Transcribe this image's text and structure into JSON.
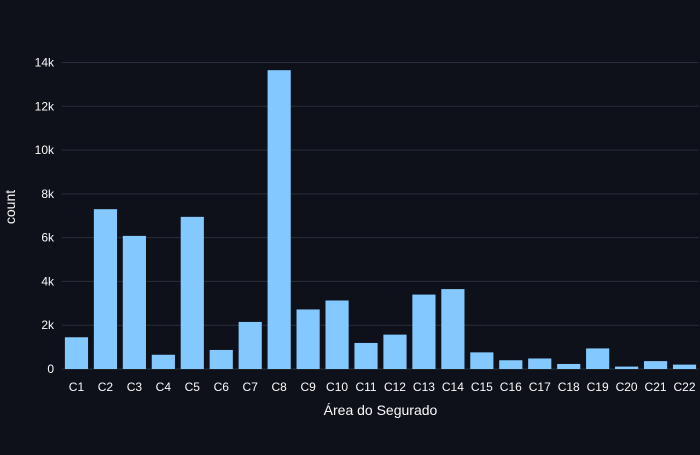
{
  "chart_data": {
    "type": "bar",
    "xlabel": "Área do Segurado",
    "ylabel": "count",
    "categories": [
      "C1",
      "C2",
      "C3",
      "C4",
      "C5",
      "C6",
      "C7",
      "C8",
      "C9",
      "C10",
      "C11",
      "C12",
      "C13",
      "C14",
      "C15",
      "C16",
      "C17",
      "C18",
      "C19",
      "C20",
      "C21",
      "C22"
    ],
    "values": [
      1450,
      7300,
      6080,
      650,
      6950,
      870,
      2150,
      13650,
      2720,
      3130,
      1190,
      1570,
      3400,
      3650,
      760,
      400,
      480,
      230,
      940,
      110,
      360,
      200
    ],
    "ylim": [
      0,
      14800
    ],
    "yticks": [
      0,
      2000,
      4000,
      6000,
      8000,
      10000,
      12000,
      14000
    ],
    "ytick_labels": [
      "0",
      "2k",
      "4k",
      "6k",
      "8k",
      "10k",
      "12k",
      "14k"
    ],
    "grid": true,
    "colors": {
      "background": "#0e111a",
      "bar": "#83c9ff",
      "grid": "#2a2e38",
      "text": "#fafafa"
    }
  }
}
